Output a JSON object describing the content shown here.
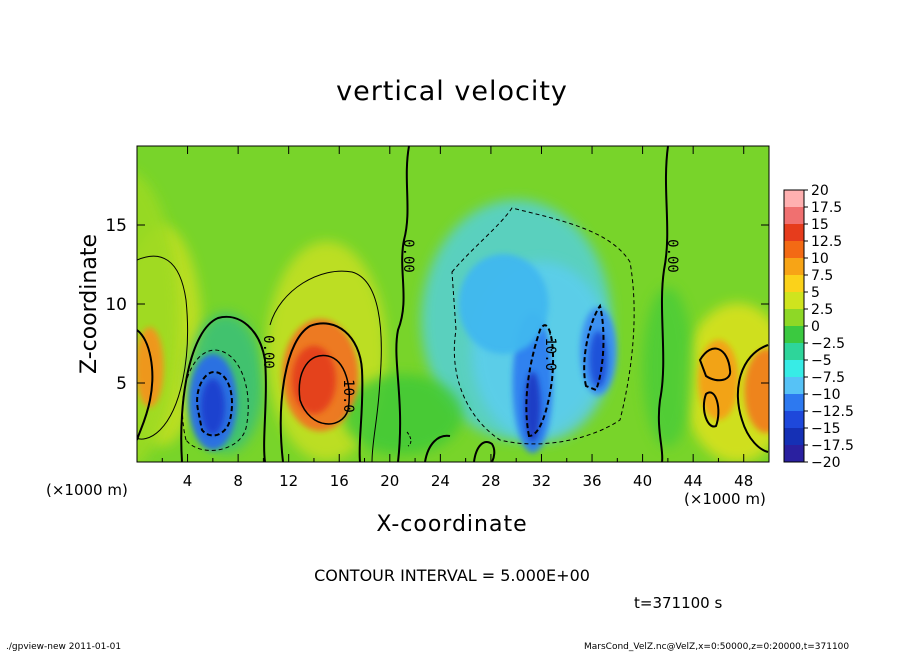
{
  "chart_data": {
    "type": "heatmap",
    "title": "vertical velocity",
    "xlabel": "X-coordinate",
    "ylabel": "Z-coordinate",
    "x_unit_label": "(×1000 m)",
    "x_range": [
      0,
      50
    ],
    "y_range": [
      0,
      20
    ],
    "x_ticks": [
      4,
      8,
      12,
      16,
      20,
      24,
      28,
      32,
      36,
      40,
      44,
      48
    ],
    "y_ticks": [
      5,
      10,
      15
    ],
    "colorbar": {
      "levels": [
        "20",
        "17.5",
        "15",
        "12.5",
        "10",
        "7.5",
        "5",
        "2.5",
        "0",
        "−2.5",
        "−5",
        "−7.5",
        "−10",
        "−12.5",
        "−15",
        "−17.5",
        "−20"
      ],
      "values": [
        20,
        17.5,
        15,
        12.5,
        10,
        7.5,
        5,
        2.5,
        0,
        -2.5,
        -5,
        -7.5,
        -10,
        -12.5,
        -15,
        -17.5,
        -20
      ],
      "colors": [
        "#ffb0b0",
        "#f07070",
        "#e63c1c",
        "#f36a14",
        "#f7a416",
        "#fbd21a",
        "#cfe41e",
        "#8ed826",
        "#3bc940",
        "#2ed59a",
        "#37ece6",
        "#56c2f6",
        "#2d79f0",
        "#1e48db",
        "#1530b5",
        "#2a20a0",
        "#6a1fb4"
      ]
    },
    "contour_labels": [
      "0.00",
      "0.00",
      "0.00",
      "10.0",
      "-10.0"
    ],
    "contour_interval": 5.0,
    "features": [
      {
        "x": 0.8,
        "z": 6,
        "value": 9
      },
      {
        "x": 6,
        "z": 4,
        "value": -11
      },
      {
        "x": 14.5,
        "z": 5.5,
        "value": 13
      },
      {
        "x": 31.5,
        "z": 4,
        "value": -12
      },
      {
        "x": 36.5,
        "z": 7,
        "value": -11
      },
      {
        "x": 30,
        "z": 9,
        "value": -6
      },
      {
        "x": 46,
        "z": 5,
        "value": 8
      },
      {
        "x": 49.5,
        "z": 4.5,
        "value": 12
      },
      {
        "x": 4,
        "z": 9,
        "value": 4
      },
      {
        "x": 15,
        "z": 10,
        "value": 5
      }
    ]
  },
  "labels": {
    "contour_interval_text": "CONTOUR INTERVAL = 5.000E+00",
    "time_text": "t=371100 s",
    "footer_left": "./gpview-new  2011-01-01",
    "footer_right": "MarsCond_VelZ.nc@VelZ,x=0:50000,z=0:20000,t=371100"
  }
}
